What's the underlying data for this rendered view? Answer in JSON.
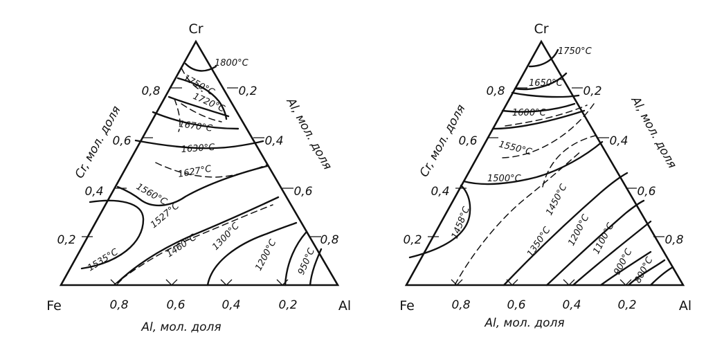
{
  "diagrams": [
    {
      "vertices": {
        "top": "Cr",
        "left": "Fe",
        "right": "Al"
      },
      "left_axis": {
        "title": "Cr, мол. доля",
        "ticks": [
          "0,2",
          "0,4",
          "0,6",
          "0,8"
        ]
      },
      "right_axis": {
        "title": "Al, мол. доля",
        "ticks": [
          "0,2",
          "0,4",
          "0,6",
          "0,8"
        ]
      },
      "bottom_axis": {
        "title": "Al, мол. доля",
        "ticks": [
          "0,8",
          "0,6",
          "0,4",
          "0,2"
        ]
      },
      "isotherms": [
        "1800°C",
        "1750°C",
        "1720°C",
        "1670°C",
        "1630°C",
        "1627°C",
        "1560°C",
        "1527°C",
        "1535°C",
        "1460°C",
        "1300°C",
        "1200°C",
        "950°C"
      ]
    },
    {
      "vertices": {
        "top": "Cr",
        "left": "Fe",
        "right": "Al"
      },
      "left_axis": {
        "title": "Cr, мол. доля",
        "ticks": [
          "0,2",
          "0,4",
          "0,6",
          "0,8"
        ]
      },
      "right_axis": {
        "title": "Al, мол. доля",
        "ticks": [
          "0,4",
          "0,6",
          "0,8"
        ]
      },
      "bottom_axis": {
        "title": "Al, мол. доля",
        "ticks": [
          "0,8",
          "0,6",
          "0,4",
          "0,2"
        ]
      },
      "extra_ticks": [
        "0,2"
      ],
      "isotherms": [
        "1750°C",
        "1650°C",
        "1600°C",
        "1550°C",
        "1500°C",
        "1450°C",
        "1458°C",
        "1350°C",
        "1200°C",
        "1100°C",
        "900°C",
        "800°C"
      ]
    }
  ]
}
